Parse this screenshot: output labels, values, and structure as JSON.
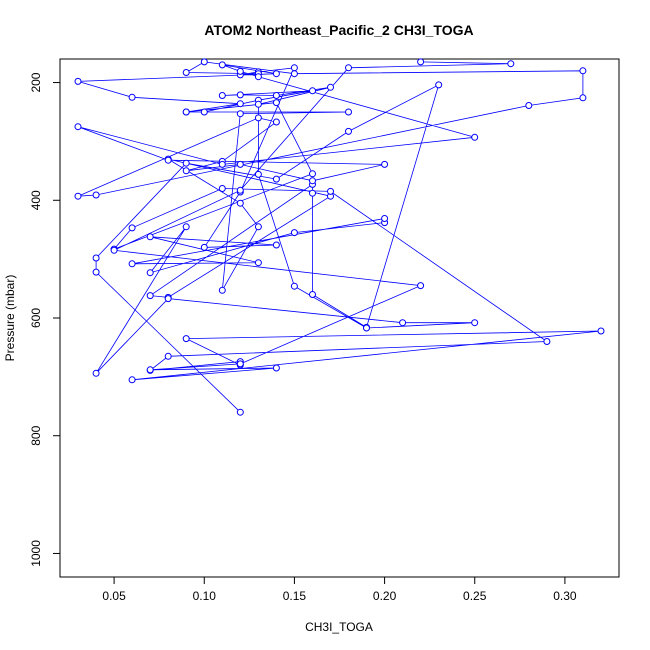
{
  "chart_data": {
    "type": "line",
    "title": "ATOM2 Northeast_Pacific_2 CH3I_TOGA",
    "xlabel": "CH3I_TOGA",
    "ylabel": "Pressure (mbar)",
    "xlim": [
      0.02,
      0.33
    ],
    "ylim": [
      1040,
      160
    ],
    "x_ticks": [
      0.05,
      0.1,
      0.15,
      0.2,
      0.25,
      0.3
    ],
    "x_tick_labels": [
      "0.05",
      "0.10",
      "0.15",
      "0.20",
      "0.25",
      "0.30"
    ],
    "y_ticks": [
      200,
      400,
      600,
      800,
      1000
    ],
    "y_tick_labels": [
      "200",
      "400",
      "600",
      "800",
      "1000"
    ],
    "grid": false,
    "series": [
      {
        "color": "#0000ff",
        "marker": "open-circle",
        "points": [
          [
            0.12,
            760
          ],
          [
            0.04,
            522
          ],
          [
            0.04,
            498
          ],
          [
            0.09,
            337
          ],
          [
            0.14,
            364
          ],
          [
            0.18,
            283
          ],
          [
            0.23,
            204
          ],
          [
            0.19,
            616
          ],
          [
            0.16,
            560
          ],
          [
            0.16,
            388
          ],
          [
            0.16,
            373
          ],
          [
            0.07,
            562
          ],
          [
            0.08,
            565
          ],
          [
            0.17,
            393
          ],
          [
            0.08,
            330
          ],
          [
            0.12,
            405
          ],
          [
            0.13,
            445
          ],
          [
            0.11,
            553
          ],
          [
            0.12,
            253
          ],
          [
            0.18,
            250
          ],
          [
            0.09,
            250
          ],
          [
            0.1,
            250
          ],
          [
            0.13,
            230
          ],
          [
            0.16,
            214
          ],
          [
            0.11,
            222
          ],
          [
            0.12,
            221
          ],
          [
            0.14,
            222
          ],
          [
            0.17,
            208
          ],
          [
            0.13,
            237
          ],
          [
            0.13,
            356
          ],
          [
            0.15,
            546
          ],
          [
            0.19,
            617
          ],
          [
            0.25,
            608
          ],
          [
            0.21,
            608
          ],
          [
            0.08,
            567
          ],
          [
            0.04,
            694
          ],
          [
            0.09,
            445
          ],
          [
            0.07,
            523
          ],
          [
            0.15,
            455
          ],
          [
            0.2,
            438
          ],
          [
            0.2,
            431
          ],
          [
            0.06,
            508
          ],
          [
            0.13,
            506
          ],
          [
            0.07,
            462
          ],
          [
            0.14,
            476
          ],
          [
            0.1,
            480
          ],
          [
            0.12,
            386
          ],
          [
            0.15,
            175
          ],
          [
            0.13,
            182
          ],
          [
            0.12,
            187
          ],
          [
            0.13,
            185
          ],
          [
            0.09,
            183
          ],
          [
            0.1,
            165
          ],
          [
            0.15,
            185
          ],
          [
            0.31,
            180
          ],
          [
            0.31,
            226
          ],
          [
            0.28,
            239
          ],
          [
            0.04,
            391
          ],
          [
            0.03,
            393
          ],
          [
            0.13,
            260
          ],
          [
            0.14,
            267
          ],
          [
            0.11,
            334
          ],
          [
            0.09,
            350
          ],
          [
            0.12,
            339
          ],
          [
            0.16,
            367
          ],
          [
            0.2,
            339
          ],
          [
            0.08,
            332
          ],
          [
            0.03,
            275
          ],
          [
            0.11,
            339
          ],
          [
            0.25,
            293
          ],
          [
            0.13,
            190
          ],
          [
            0.12,
            181
          ],
          [
            0.11,
            170
          ],
          [
            0.14,
            185
          ],
          [
            0.03,
            198
          ],
          [
            0.06,
            225
          ],
          [
            0.12,
            236
          ],
          [
            0.09,
            250
          ],
          [
            0.14,
            234
          ],
          [
            0.16,
            355
          ],
          [
            0.05,
            483
          ],
          [
            0.06,
            447
          ],
          [
            0.11,
            380
          ],
          [
            0.17,
            385
          ],
          [
            0.29,
            640
          ],
          [
            0.08,
            665
          ],
          [
            0.07,
            689
          ],
          [
            0.12,
            674
          ],
          [
            0.12,
            680
          ],
          [
            0.09,
            635
          ],
          [
            0.32,
            622
          ],
          [
            0.06,
            705
          ],
          [
            0.14,
            685
          ],
          [
            0.07,
            688
          ],
          [
            0.12,
            678
          ],
          [
            0.22,
            545
          ],
          [
            0.05,
            485
          ],
          [
            0.12,
            383
          ],
          [
            0.18,
            175
          ],
          [
            0.27,
            168
          ],
          [
            0.22,
            165
          ]
        ]
      }
    ]
  }
}
